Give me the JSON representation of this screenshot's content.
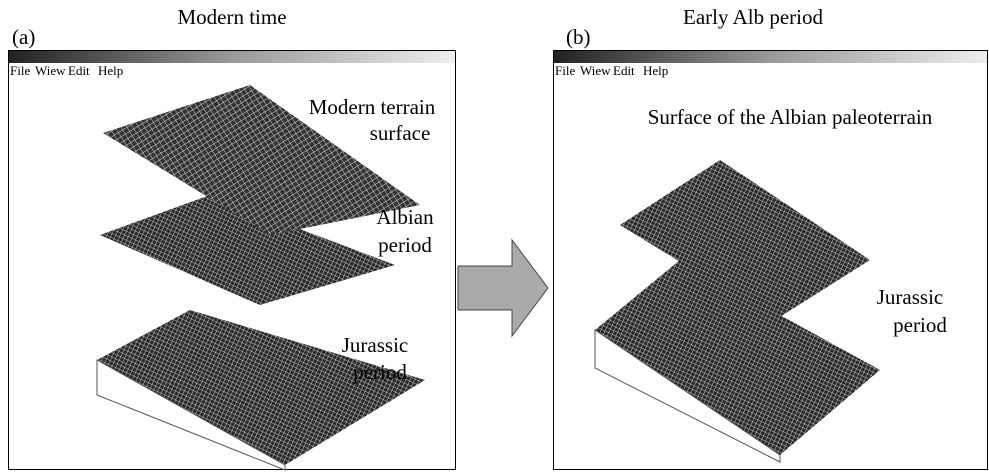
{
  "panels": [
    {
      "label": "(a)",
      "title": "Modern time",
      "menu": [
        "File",
        "Wiew",
        "Edit",
        "Help"
      ],
      "annotations": [
        {
          "lines": [
            "Modern terrain",
            "surface"
          ]
        },
        {
          "lines": [
            "Albian",
            "period"
          ]
        },
        {
          "lines": [
            "Jurassic",
            "period"
          ]
        }
      ]
    },
    {
      "label": "(b)",
      "title": "Early Alb period",
      "menu": [
        "File",
        "Wiew",
        "Edit",
        "Help"
      ],
      "annotations": [
        {
          "lines": [
            "Surface of the Albian paleoterrain"
          ]
        },
        {
          "lines": [
            "Jurassic",
            "period"
          ]
        }
      ]
    }
  ]
}
